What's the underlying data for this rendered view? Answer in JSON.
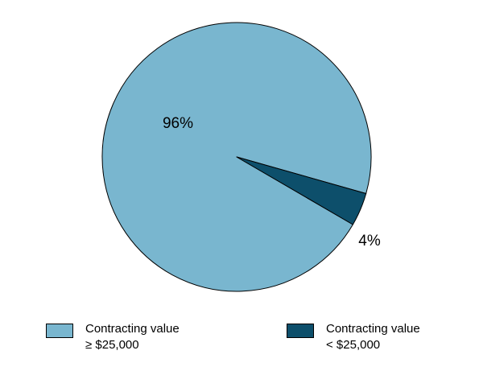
{
  "chart_data": {
    "type": "pie",
    "slices": [
      {
        "label_line1": "Contracting value",
        "label_line2": "≥ $25,000",
        "value": 96,
        "value_label": "96%",
        "color": "#79b6cf"
      },
      {
        "label_line1": "Contracting value",
        "label_line2": "< $25,000",
        "value": 4,
        "value_label": "4%",
        "color": "#0d4f6b"
      }
    ],
    "legend_position": "bottom"
  }
}
